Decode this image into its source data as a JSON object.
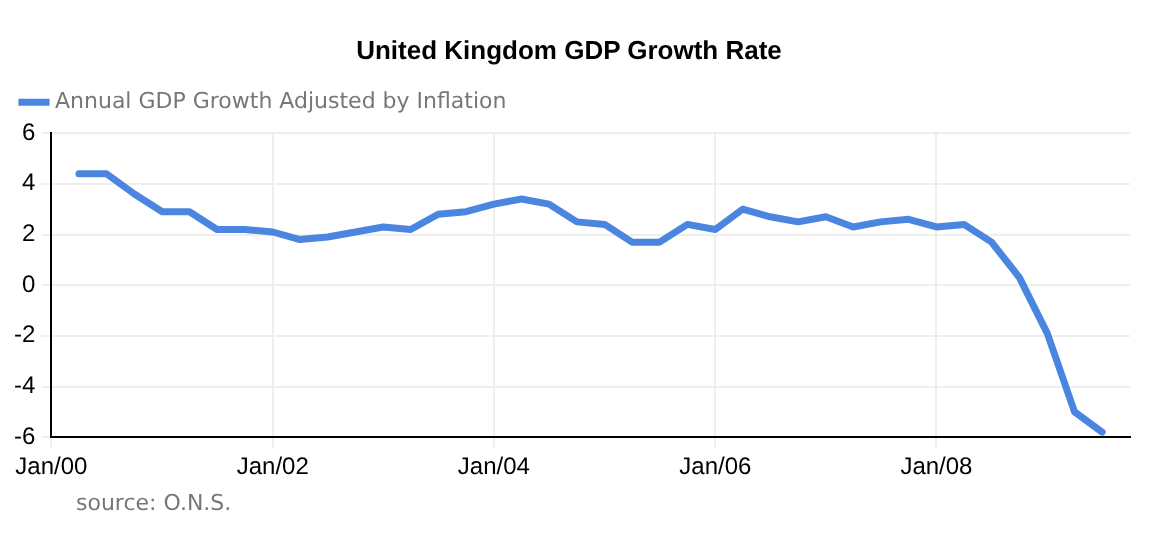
{
  "chart_data": {
    "type": "line",
    "title": "United Kingdom GDP Growth Rate",
    "x": [
      "2000-04",
      "2000-07",
      "2000-10",
      "2001-01",
      "2001-04",
      "2001-07",
      "2001-10",
      "2002-01",
      "2002-04",
      "2002-07",
      "2002-10",
      "2003-01",
      "2003-04",
      "2003-07",
      "2003-10",
      "2004-01",
      "2004-04",
      "2004-07",
      "2004-10",
      "2005-01",
      "2005-04",
      "2005-07",
      "2005-10",
      "2006-01",
      "2006-04",
      "2006-07",
      "2006-10",
      "2007-01",
      "2007-04",
      "2007-07",
      "2007-10",
      "2008-01",
      "2008-04",
      "2008-07",
      "2008-10",
      "2009-01",
      "2009-04",
      "2009-07"
    ],
    "series": [
      {
        "name": "Annual GDP Growth Adjusted by Inflation",
        "color": "#4a86e0",
        "values": [
          4.4,
          4.4,
          3.6,
          2.9,
          2.9,
          2.2,
          2.2,
          2.1,
          1.8,
          1.9,
          2.1,
          2.3,
          2.2,
          2.8,
          2.9,
          3.2,
          3.4,
          3.2,
          2.5,
          2.4,
          1.7,
          1.7,
          2.4,
          2.2,
          3.0,
          2.7,
          2.5,
          2.7,
          2.3,
          2.5,
          2.6,
          2.3,
          2.4,
          1.7,
          0.3,
          -1.9,
          -5.0,
          -5.8
        ]
      }
    ],
    "xlim": [
      "2000-01",
      "2009-10"
    ],
    "xticks": [
      {
        "value": "2000-01",
        "label": "Jan/00"
      },
      {
        "value": "2002-01",
        "label": "Jan/02"
      },
      {
        "value": "2004-01",
        "label": "Jan/04"
      },
      {
        "value": "2006-01",
        "label": "Jan/06"
      },
      {
        "value": "2008-01",
        "label": "Jan/08"
      }
    ],
    "ylim": [
      -6,
      6
    ],
    "yticks": [
      -6,
      -4,
      -2,
      0,
      2,
      4,
      6
    ],
    "grid": true,
    "legend": "top left",
    "marker": "none",
    "line_style": "solid",
    "annotations": [
      "source: O.N.S."
    ]
  }
}
